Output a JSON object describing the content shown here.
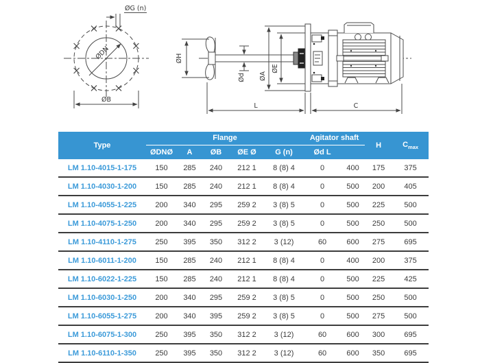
{
  "diagram": {
    "labels": {
      "og_n": "ØG (n)",
      "odn": "ØDN",
      "ob": "ØB",
      "oh": "ØH",
      "od": "Ød",
      "oa": "ØA",
      "oe": "ØE",
      "l": "L",
      "c": "C"
    }
  },
  "table": {
    "header": {
      "type": "Type",
      "flange_group": "Flange",
      "agitator_group": "Agitator shaft",
      "h": "H",
      "cmax_base": "C",
      "cmax_sub": "max",
      "sub": [
        "ØDNØ",
        "A",
        "ØB",
        "ØE Ø",
        "G (n)",
        "Ød L",
        ""
      ]
    },
    "rows": [
      {
        "type": "LM 1.10-4015-1-175",
        "values": [
          "150",
          "285",
          "240",
          "212 1",
          "8 (8) 4",
          "0",
          "400",
          "175",
          "375"
        ]
      },
      {
        "type": "LM 1.10-4030-1-200",
        "values": [
          "150",
          "285",
          "240",
          "212 1",
          "8 (8) 4",
          "0",
          "500",
          "200",
          "405"
        ]
      },
      {
        "type": "LM 1.10-4055-1-225",
        "values": [
          "200",
          "340",
          "295",
          "259 2",
          "3 (8) 5",
          "0",
          "500",
          "225",
          "500"
        ]
      },
      {
        "type": "LM 1.10-4075-1-250",
        "values": [
          "200",
          "340",
          "295",
          "259 2",
          "3 (8) 5",
          "0",
          "500",
          "250",
          "500"
        ]
      },
      {
        "type": "LM 1.10-4110-1-275",
        "values": [
          "250",
          "395",
          "350",
          "312 2",
          "3 (12)",
          "60",
          "600",
          "275",
          "695"
        ]
      },
      {
        "type": "LM 1.10-6011-1-200",
        "values": [
          "150",
          "285",
          "240",
          "212 1",
          "8 (8) 4",
          "0",
          "400",
          "200",
          "375"
        ]
      },
      {
        "type": "LM 1.10-6022-1-225",
        "values": [
          "150",
          "285",
          "240",
          "212 1",
          "8 (8) 4",
          "0",
          "500",
          "225",
          "425"
        ]
      },
      {
        "type": "LM 1.10-6030-1-250",
        "values": [
          "200",
          "340",
          "295",
          "259 2",
          "3 (8) 5",
          "0",
          "500",
          "250",
          "500"
        ]
      },
      {
        "type": "LM 1.10-6055-1-275",
        "values": [
          "200",
          "340",
          "395",
          "259 2",
          "3 (8) 5",
          "0",
          "500",
          "275",
          "500"
        ]
      },
      {
        "type": "LM 1.10-6075-1-300",
        "values": [
          "250",
          "395",
          "350",
          "312 2",
          "3 (12)",
          "60",
          "600",
          "300",
          "695"
        ]
      },
      {
        "type": "LM 1.10-6110-1-350",
        "values": [
          "250",
          "395",
          "350",
          "312 2",
          "3 (12)",
          "60",
          "600",
          "350",
          "695"
        ]
      }
    ]
  },
  "colors": {
    "header_bg": "#3795d2",
    "header_text": "#ffffff",
    "type_text": "#3b9ad9",
    "body_text": "#3a3a3a",
    "row_border": "#3c3c3c",
    "line_color": "#4a4a4a"
  }
}
